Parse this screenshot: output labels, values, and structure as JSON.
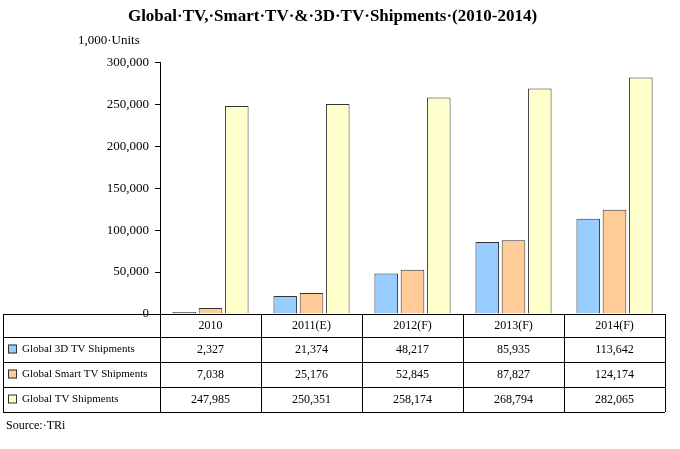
{
  "chart_data": {
    "type": "bar",
    "title": "Global·TV,·Smart·TV·&·3D·TV·Shipments·(2010-2014)",
    "y_label": "1,000·Units",
    "source": "Source:·TRi",
    "categories": [
      "2010",
      "2011(E)",
      "2012(F)",
      "2013(F)",
      "2014(F)"
    ],
    "series": [
      {
        "name": "Global 3D TV Shipments",
        "color": "#99ccff",
        "values": [
          2327,
          21374,
          48217,
          85935,
          113642
        ],
        "value_labels": [
          "2,327",
          "21,374",
          "48,217",
          "85,935",
          "113,642"
        ]
      },
      {
        "name": "Global Smart TV Shipments",
        "color": "#ffcc99",
        "values": [
          7038,
          25176,
          52845,
          87827,
          124174
        ],
        "value_labels": [
          "7,038",
          "25,176",
          "52,845",
          "87,827",
          "124,174"
        ]
      },
      {
        "name": "Global TV Shipments",
        "color": "#ffffcc",
        "values": [
          247985,
          250351,
          258174,
          268794,
          282065
        ],
        "value_labels": [
          "247,985",
          "250,351",
          "258,174",
          "268,794",
          "282,065"
        ]
      }
    ],
    "ylim": [
      0,
      300000
    ],
    "yticks": [
      0,
      {
        "value": 50000,
        "label": "50,000"
      },
      {
        "value": 100000,
        "label": "100,000"
      },
      {
        "value": 150000,
        "label": "150,000"
      },
      {
        "value": 200000,
        "label": "200,000"
      },
      {
        "value": 250000,
        "label": "250,000"
      },
      {
        "value": 300000,
        "label": "300,000"
      }
    ],
    "grid": false
  }
}
